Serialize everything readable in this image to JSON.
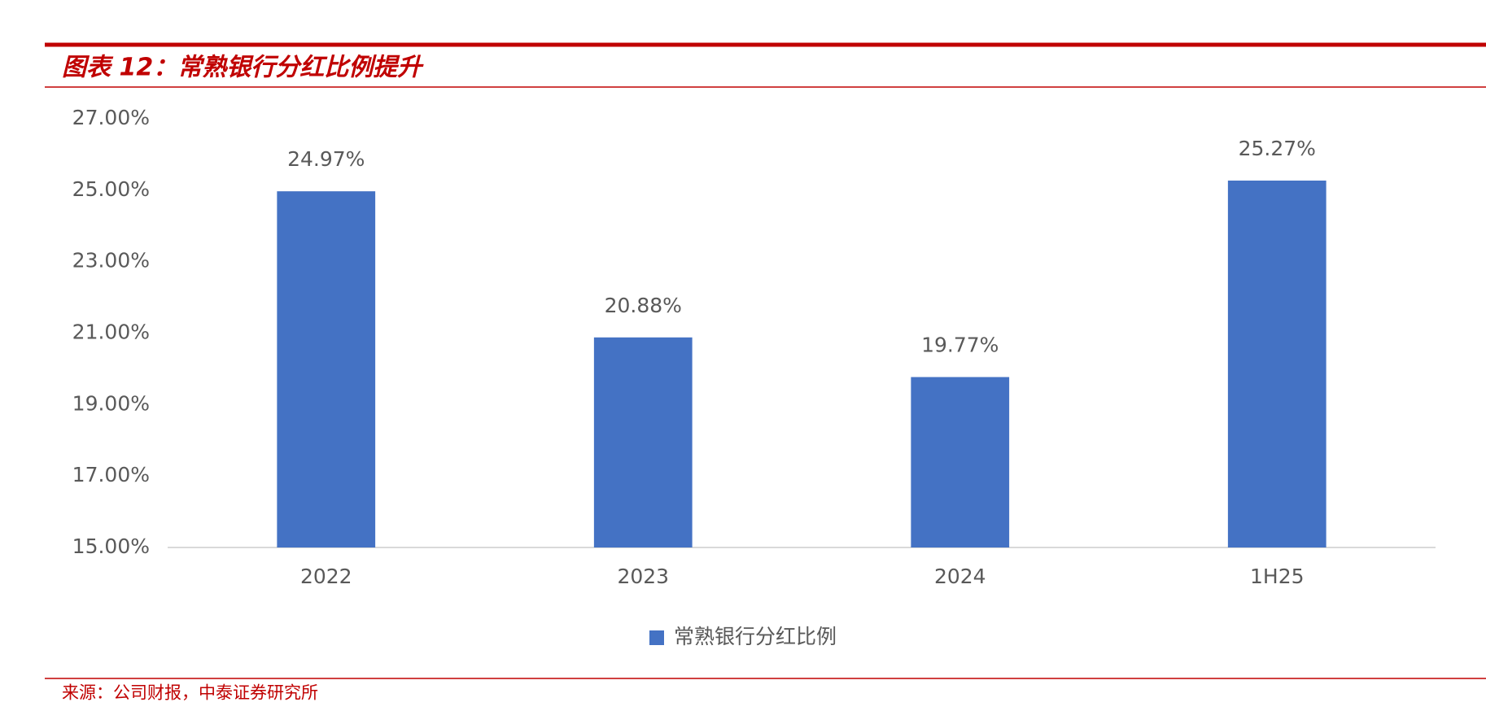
{
  "chart_data": {
    "type": "bar",
    "title": "图表 12：常熟银行分红比例提升",
    "categories": [
      "2022",
      "2023",
      "2024",
      "1H25"
    ],
    "series": [
      {
        "name": "常熟银行分红比例",
        "color": "#4472c4",
        "values": [
          24.97,
          20.88,
          19.77,
          25.27
        ],
        "value_labels": [
          "24.97%",
          "20.88%",
          "19.77%",
          "25.27%"
        ]
      }
    ],
    "ylim": [
      15,
      27
    ],
    "yticks": [
      {
        "value": 15,
        "label": "15.00%"
      },
      {
        "value": 17,
        "label": "17.00%"
      },
      {
        "value": 19,
        "label": "19.00%"
      },
      {
        "value": 21,
        "label": "21.00%"
      },
      {
        "value": 23,
        "label": "23.00%"
      },
      {
        "value": 25,
        "label": "25.00%"
      },
      {
        "value": 27,
        "label": "27.00%"
      }
    ],
    "grid": false,
    "legend": "bottom"
  },
  "source": "来源：公司财报，中泰证券研究所"
}
